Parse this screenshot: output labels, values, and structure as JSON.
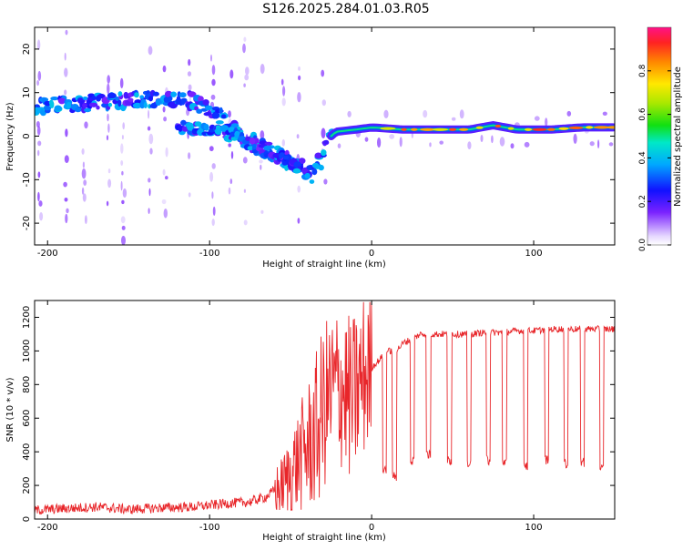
{
  "title": "S126.2025.284.01.03.R05",
  "colors": {
    "snr_line": "#e8262a",
    "axis": "#000000",
    "background": "#ffffff"
  },
  "chart_data": [
    {
      "type": "heatmap",
      "name": "spectrogram",
      "xlabel": "Height of straight line (km)",
      "ylabel": "Frequency (Hz)",
      "xlim": [
        -208,
        150
      ],
      "ylim": [
        -25,
        25
      ],
      "x_ticks": [
        -200,
        -100,
        0,
        100
      ],
      "x_tick_labels": [
        "-200",
        "-100",
        "0",
        "100"
      ],
      "y_ticks": [
        -20,
        -10,
        0,
        10,
        20
      ],
      "y_tick_labels": [
        "-20",
        "-10",
        "0",
        "10",
        "20"
      ],
      "ridge": {
        "x": [
          -208,
          -185,
          -160,
          -135,
          -120,
          -110,
          -95,
          -80,
          -65,
          -50,
          -35,
          -28,
          -22,
          -10,
          0,
          20,
          40,
          60,
          75,
          90,
          110,
          130,
          150
        ],
        "freq": [
          7,
          7.5,
          8,
          8.5,
          8.5,
          8,
          5,
          0,
          -3,
          -6,
          -9,
          -1,
          1,
          1.5,
          2,
          1.5,
          1.5,
          1.5,
          2.5,
          1.5,
          1.5,
          2,
          2
        ]
      },
      "secondary_ridge": {
        "x": [
          -120,
          -100,
          -85,
          -70,
          -58,
          -45
        ],
        "freq": [
          2,
          1.5,
          0,
          -3,
          -5,
          -7
        ]
      },
      "colorbar": {
        "label": "Normalized spectral amplitude",
        "range": [
          0,
          1
        ],
        "ticks": [
          0.0,
          0.2,
          0.4,
          0.6,
          0.8
        ],
        "tick_labels": [
          "0.0",
          "0.2",
          "0.4",
          "0.6",
          "0.8"
        ]
      }
    },
    {
      "type": "line",
      "name": "snr",
      "xlabel": "Height of straight line (km)",
      "ylabel": "SNR (10 * v/v)",
      "xlim": [
        -208,
        150
      ],
      "ylim": [
        0,
        1300
      ],
      "x_ticks": [
        -200,
        -100,
        0,
        100
      ],
      "x_tick_labels": [
        "-200",
        "-100",
        "0",
        "100"
      ],
      "y_ticks": [
        0,
        200,
        400,
        600,
        800,
        1000,
        1200
      ],
      "y_tick_labels": [
        "0",
        "200",
        "400",
        "600",
        "800",
        "1000",
        "1200"
      ],
      "series": [
        {
          "name": "SNR",
          "x": [
            -208,
            -190,
            -170,
            -150,
            -130,
            -110,
            -90,
            -75,
            -65,
            -55,
            -45,
            -35,
            -28,
            -20,
            -12,
            -5,
            0,
            5,
            10,
            15,
            20,
            25,
            30,
            40,
            50,
            60,
            70,
            80,
            90,
            100,
            110,
            120,
            130,
            140,
            150
          ],
          "values": [
            40,
            50,
            60,
            45,
            55,
            60,
            80,
            90,
            120,
            200,
            350,
            500,
            700,
            800,
            700,
            850,
            900,
            950,
            1000,
            1000,
            1050,
            1070,
            1100,
            1100,
            1100,
            1100,
            1110,
            1110,
            1120,
            1120,
            1130,
            1130,
            1130,
            1130,
            1130
          ]
        }
      ],
      "dropouts": [
        {
          "x": 8,
          "value": 300
        },
        {
          "x": 14,
          "value": 250
        },
        {
          "x": 25,
          "value": 350
        },
        {
          "x": 35,
          "value": 380
        },
        {
          "x": 48,
          "value": 350
        },
        {
          "x": 60,
          "value": 330
        },
        {
          "x": 72,
          "value": 350
        },
        {
          "x": 82,
          "value": 340
        },
        {
          "x": 95,
          "value": 320
        },
        {
          "x": 108,
          "value": 350
        },
        {
          "x": 120,
          "value": 330
        },
        {
          "x": 130,
          "value": 340
        },
        {
          "x": 142,
          "value": 300
        }
      ]
    }
  ]
}
